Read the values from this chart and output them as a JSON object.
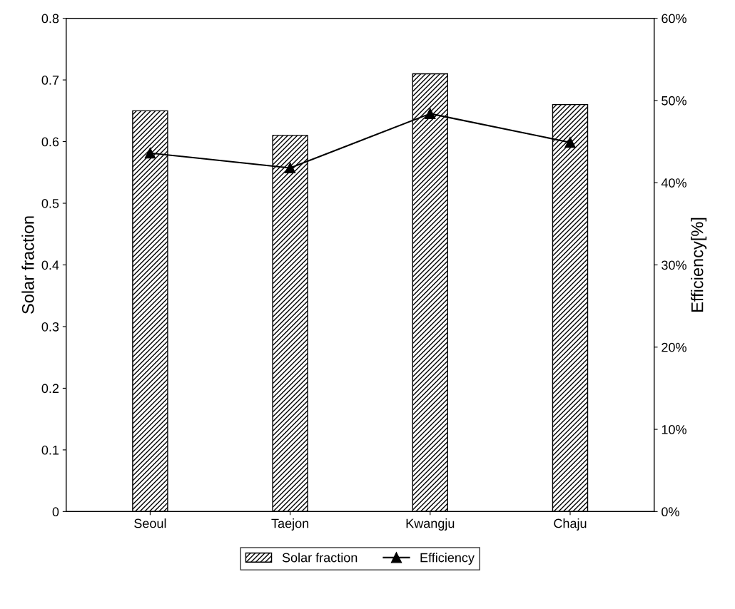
{
  "chart_data": {
    "type": "bar",
    "categories": [
      "Seoul",
      "Taejon",
      "Kwangju",
      "Chaju"
    ],
    "ylabel": "Solar fraction",
    "y2label": "Efficiency[%]",
    "series": [
      {
        "name": "Solar fraction",
        "color": "#000000",
        "values": [
          0.65,
          0.61,
          0.71,
          0.66
        ]
      },
      {
        "name": "Efficiency",
        "type": "line",
        "axis": "y2",
        "color": "#000000",
        "marker": "triangle",
        "values": [
          43.6,
          41.8,
          48.4,
          44.9
        ]
      }
    ],
    "ylim": [
      0,
      0.8
    ],
    "yticks": [
      0,
      0.1,
      0.2,
      0.3,
      0.4,
      0.5,
      0.6,
      0.7,
      0.8
    ],
    "y2lim": [
      0,
      60
    ],
    "y2ticks": [
      {
        "value": 0,
        "label": "0%"
      },
      {
        "value": 10,
        "label": "10%"
      },
      {
        "value": 20,
        "label": "20%"
      },
      {
        "value": 30,
        "label": "30%"
      },
      {
        "value": 40,
        "label": "40%"
      },
      {
        "value": 50,
        "label": "50%"
      },
      {
        "value": 60,
        "label": "60%"
      }
    ],
    "grid": false,
    "legend": "bottom"
  }
}
